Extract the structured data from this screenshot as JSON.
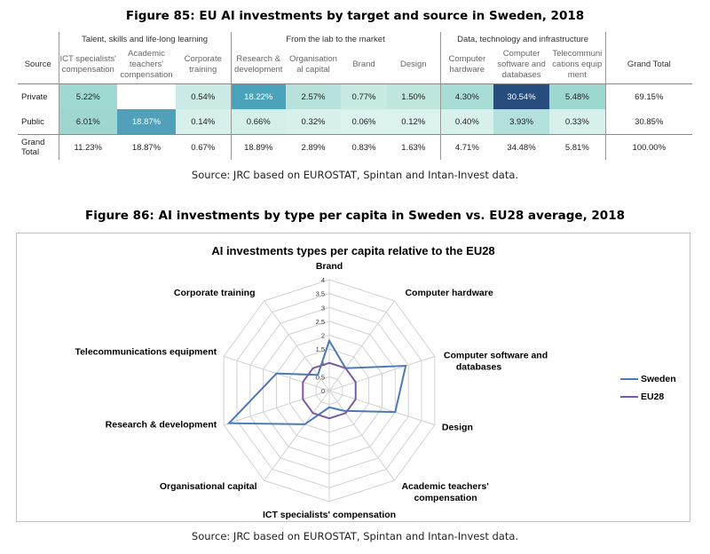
{
  "fig85": {
    "title": "Figure 85: EU AI investments by target and source in Sweden, 2018",
    "groups": [
      "Talent, skills and life-long learning",
      "From the lab to the market",
      "Data, technology and infrastructure"
    ],
    "source_header": "Source",
    "columns": [
      "ICT specialists' compensation",
      "Academic teachers' compensation",
      "Corporate training",
      "Research & development",
      "Organisation al capital",
      "Brand",
      "Design",
      "Computer hardware",
      "Computer software and databases",
      "Telecommuni cations equip ment"
    ],
    "grand_total_header": "Grand Total",
    "rows": [
      {
        "label": "Private",
        "cells": [
          "5.22%",
          "",
          "0.54%",
          "18.22%",
          "2.57%",
          "0.77%",
          "1.50%",
          "4.30%",
          "30.54%",
          "5.48%"
        ],
        "total": "69.15%"
      },
      {
        "label": "Public",
        "cells": [
          "6.01%",
          "18.87%",
          "0.14%",
          "0.66%",
          "0.32%",
          "0.06%",
          "0.12%",
          "0.40%",
          "3.93%",
          "0.33%"
        ],
        "total": "30.85%"
      },
      {
        "label": "Grand Total",
        "cells": [
          "11.23%",
          "18.87%",
          "0.67%",
          "18.89%",
          "2.89%",
          "0.83%",
          "1.63%",
          "4.71%",
          "34.48%",
          "5.81%"
        ],
        "total": "100.00%"
      }
    ],
    "heat_colors": [
      [
        "#9fdad2",
        "#ffffff",
        "#c9eae5",
        "#4aa3ba",
        "#b7e2dc",
        "#c6e9e3",
        "#bfe5df",
        "#a8ddd6",
        "#264d7e",
        "#9cd8cf"
      ],
      [
        "#9fd7d0",
        "#4fa0b8",
        "#d8f0ec",
        "#d4efea",
        "#d8f0ec",
        "#dcf2ee",
        "#dcf2ee",
        "#d8f0ec",
        "#b2e0da",
        "#d8f0ec"
      ]
    ],
    "source": "Source: JRC based on EUROSTAT, Spintan and Intan-Invest data."
  },
  "fig86": {
    "title": "Figure 86: AI investments by type per capita in Sweden vs. EU28 average, 2018",
    "source": "Source: JRC based on EUROSTAT, Spintan and Intan-Invest data."
  },
  "chart_data": {
    "type": "radar",
    "title": "AI investments types per capita relative to the EU28",
    "categories": [
      "Brand",
      "Computer hardware",
      "Computer software and databases",
      "Design",
      "Academic teachers' compensation",
      "ICT specialists' compensation",
      "Organisational capital",
      "Research & development",
      "Telecommunications equipment",
      "Corporate training"
    ],
    "ticks": [
      "0",
      "0.5",
      "1",
      "1.5",
      "2",
      "2.5",
      "3",
      "3.5",
      "4"
    ],
    "rmax": 4,
    "series": [
      {
        "name": "Sweden",
        "color": "#4a7ab8",
        "values": [
          1.8,
          1.0,
          2.9,
          2.5,
          0.9,
          0.6,
          1.5,
          3.8,
          2.0,
          0.7
        ]
      },
      {
        "name": "EU28",
        "color": "#7a5aa6",
        "values": [
          1,
          1,
          1,
          1,
          1,
          1,
          1,
          1,
          1,
          1
        ]
      }
    ],
    "legend_position": "right",
    "grid": true
  }
}
